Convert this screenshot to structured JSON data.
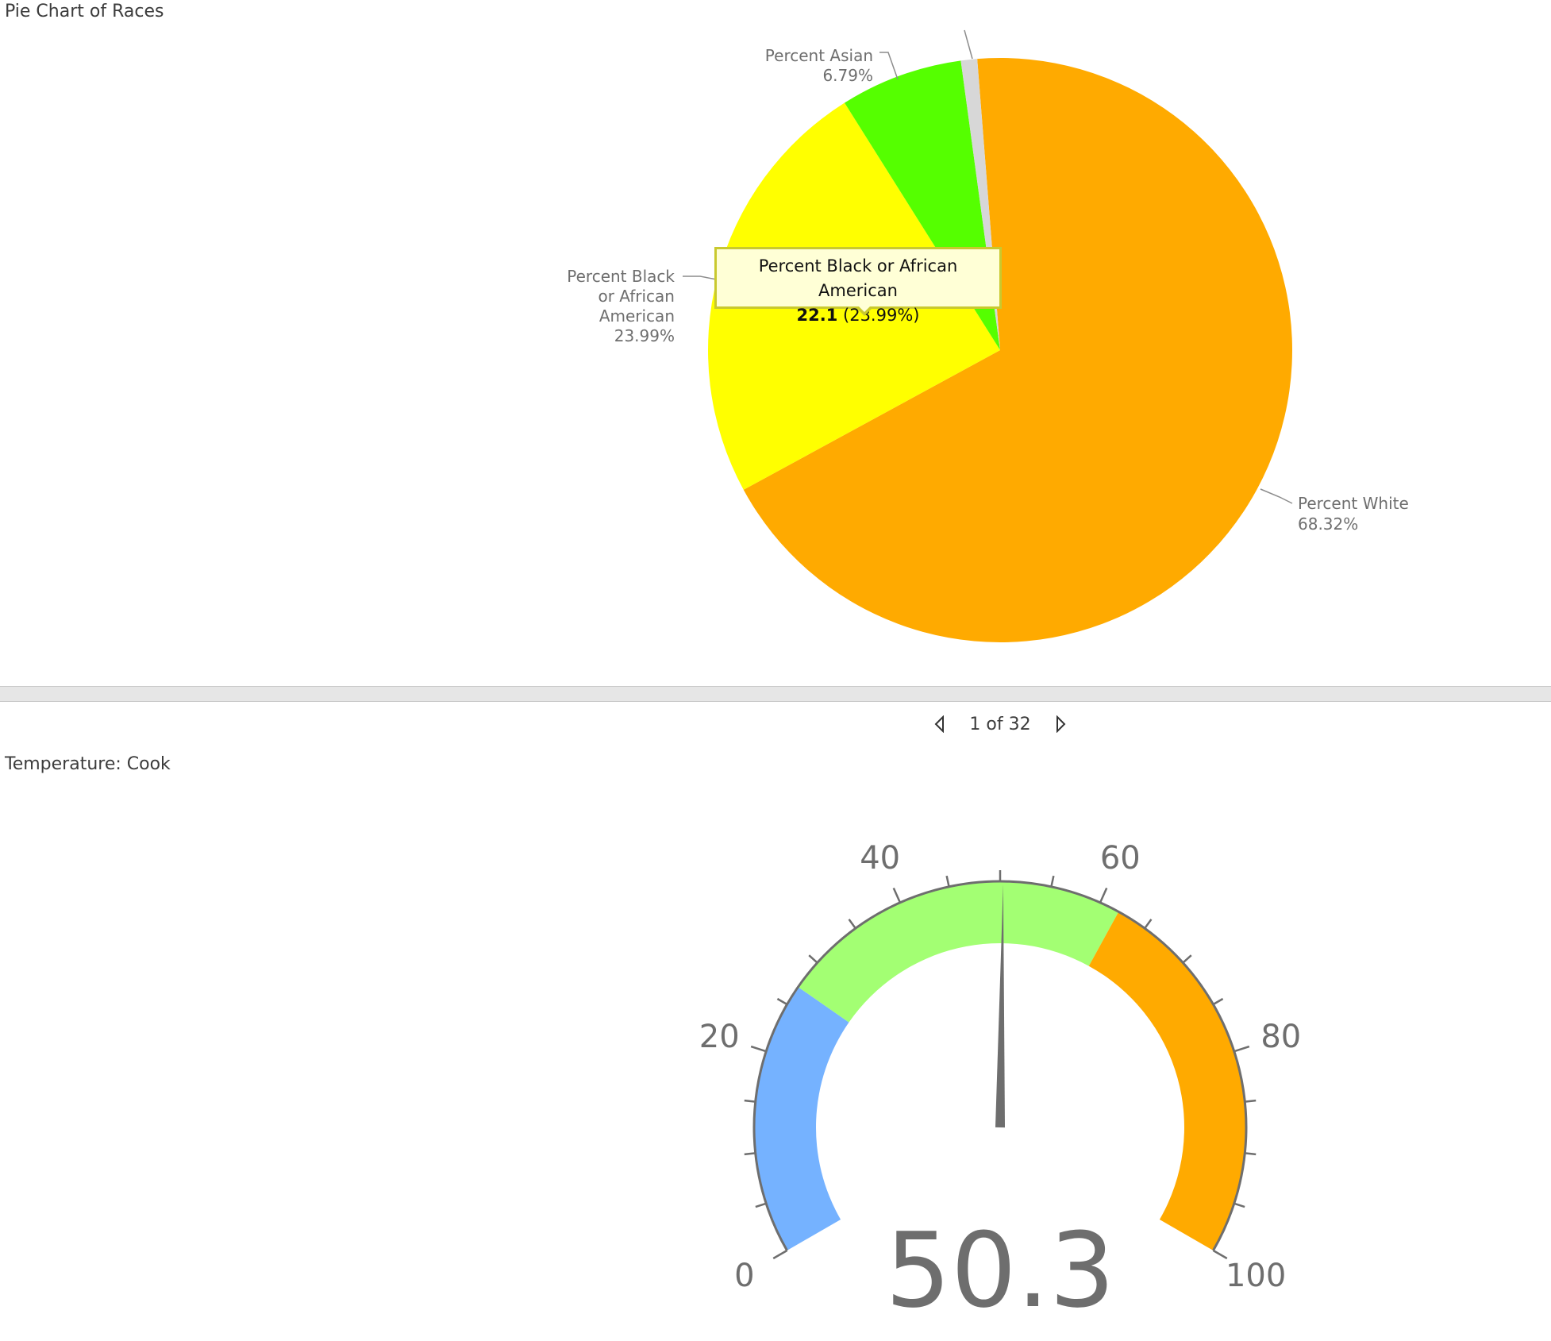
{
  "pie_panel": {
    "title": "Pie Chart of Races"
  },
  "gauge_panel": {
    "title": "Temperature: Cook"
  },
  "pager": {
    "text": "1 of 32",
    "prev_icon": "triangle-left-icon",
    "next_icon": "triangle-right-icon"
  },
  "tooltip": {
    "label": "Percent Black or African American",
    "value": "22.1",
    "percent": "(23.99%)"
  },
  "chart_data": [
    {
      "type": "pie",
      "title": "Pie Chart of Races",
      "slices": [
        {
          "name": "Percent White",
          "value_percent": 68.32,
          "label": "68.32%",
          "color": "#ffaa00"
        },
        {
          "name": "Percent Black or African American",
          "value": 22.1,
          "value_percent": 23.99,
          "label": "23.99%",
          "color": "#ffff00"
        },
        {
          "name": "Percent Asian",
          "value_percent": 6.79,
          "label": "6.79%",
          "color": "#55ff00"
        },
        {
          "name": "",
          "value_percent": 0.9,
          "label": "",
          "color": "#d7d7d7"
        }
      ],
      "labels": {
        "white": [
          "Percent White",
          "68.32%"
        ],
        "black": [
          "Percent Black",
          "or African",
          "American",
          "23.99%"
        ],
        "asian": [
          "Percent Asian",
          "6.79%"
        ]
      }
    },
    {
      "type": "gauge",
      "title": "Temperature: Cook",
      "min": 0,
      "max": 100,
      "value": 50.3,
      "value_label": "50.3",
      "major_ticks": [
        0,
        20,
        40,
        60,
        80,
        100
      ],
      "tick_labels": [
        "0",
        "20",
        "40",
        "60",
        "80",
        "100"
      ],
      "bands": [
        {
          "from": 0,
          "to": 27,
          "color": "#75b2ff"
        },
        {
          "from": 27,
          "to": 62,
          "color": "#a3ff73"
        },
        {
          "from": 62,
          "to": 100,
          "color": "#ffaa00"
        }
      ]
    }
  ]
}
